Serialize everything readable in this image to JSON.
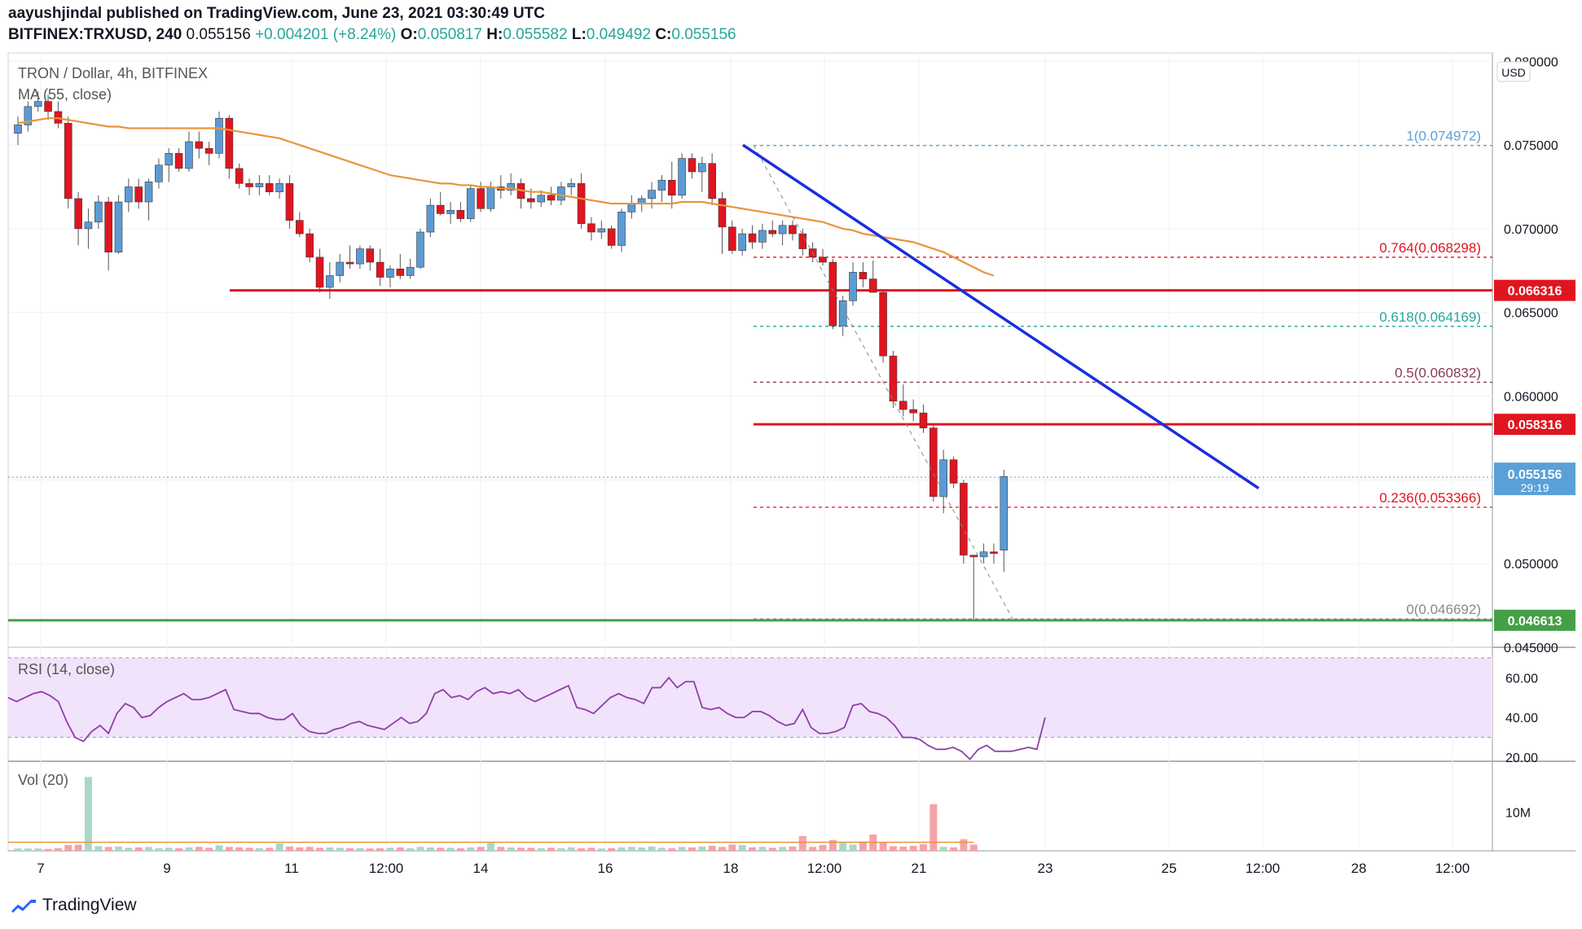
{
  "header": {
    "line1": "aayushjindal published on TradingView.com, June 23, 2021 03:30:49 UTC",
    "symbol": "BITFINEX:TRXUSD, 240",
    "last": "0.055156",
    "change": "+0.004201 (+8.24%)",
    "o_label": "O:",
    "o_val": "0.050817",
    "h_label": "H:",
    "h_val": "0.055582",
    "l_label": "L:",
    "l_val": "0.049492",
    "c_label": "C:",
    "c_val": "0.055156"
  },
  "legend": {
    "title": "TRON / Dollar, 4h, BITFINEX",
    "ma": "MA (55, close)",
    "rsi": "RSI (14, close)",
    "vol": "Vol (20)"
  },
  "brand": "TradingView",
  "colors": {
    "bull": "#5b9bd5",
    "bear": "#e0151f",
    "ma": "#e8953a",
    "trendline": "#1b2ee0",
    "support_green": "#43a047",
    "resistance_red": "#e0151f",
    "rsi_line": "#8e3fa8",
    "rsi_band": "#f1e3fb",
    "vol_bull": "#a8d8c8",
    "vol_bear": "#f4a3a8"
  },
  "chart_data": {
    "type": "candlestick",
    "title": "TRON / Dollar, 4h, BITFINEX",
    "currency": "USD",
    "price_axis": {
      "ylim": [
        0.045,
        0.0805
      ],
      "ticks": [
        "0.045000",
        "0.050000",
        "0.055000",
        "0.060000",
        "0.065000",
        "0.070000",
        "0.075000",
        "0.080000"
      ]
    },
    "time_axis": {
      "ticks": [
        "7",
        "9",
        "11",
        "12:00",
        "14",
        "16",
        "18",
        "12:00",
        "21",
        "23",
        "25",
        "12:00",
        "28",
        "12:00"
      ]
    },
    "candles": [
      [
        0.0757,
        0.0767,
        0.075,
        0.0762
      ],
      [
        0.0762,
        0.0776,
        0.0758,
        0.0773
      ],
      [
        0.0773,
        0.0782,
        0.077,
        0.0776
      ],
      [
        0.0776,
        0.078,
        0.0765,
        0.077
      ],
      [
        0.077,
        0.0776,
        0.076,
        0.0763
      ],
      [
        0.0763,
        0.0767,
        0.0712,
        0.0718
      ],
      [
        0.0718,
        0.0722,
        0.069,
        0.07
      ],
      [
        0.07,
        0.0712,
        0.0688,
        0.0704
      ],
      [
        0.0704,
        0.072,
        0.07,
        0.0716
      ],
      [
        0.0716,
        0.0719,
        0.0675,
        0.0686
      ],
      [
        0.0686,
        0.072,
        0.0685,
        0.0716
      ],
      [
        0.0716,
        0.073,
        0.071,
        0.0725
      ],
      [
        0.0725,
        0.073,
        0.0712,
        0.0716
      ],
      [
        0.0716,
        0.073,
        0.0705,
        0.0728
      ],
      [
        0.0728,
        0.0742,
        0.0724,
        0.0738
      ],
      [
        0.0738,
        0.0748,
        0.0728,
        0.0745
      ],
      [
        0.0745,
        0.0748,
        0.0734,
        0.0736
      ],
      [
        0.0736,
        0.0758,
        0.0734,
        0.0752
      ],
      [
        0.0752,
        0.0758,
        0.0742,
        0.0748
      ],
      [
        0.0748,
        0.0752,
        0.0738,
        0.0745
      ],
      [
        0.0745,
        0.077,
        0.0742,
        0.0766
      ],
      [
        0.0766,
        0.0768,
        0.073,
        0.0736
      ],
      [
        0.0736,
        0.0739,
        0.0724,
        0.0727
      ],
      [
        0.0727,
        0.073,
        0.072,
        0.0725
      ],
      [
        0.0725,
        0.0732,
        0.072,
        0.0727
      ],
      [
        0.0727,
        0.0732,
        0.072,
        0.0722
      ],
      [
        0.0722,
        0.073,
        0.0718,
        0.0727
      ],
      [
        0.0727,
        0.0732,
        0.07,
        0.0705
      ],
      [
        0.0705,
        0.071,
        0.0695,
        0.0697
      ],
      [
        0.0697,
        0.07,
        0.068,
        0.0683
      ],
      [
        0.0683,
        0.0688,
        0.0662,
        0.0665
      ],
      [
        0.0665,
        0.068,
        0.0658,
        0.0672
      ],
      [
        0.0672,
        0.0685,
        0.0668,
        0.068
      ],
      [
        0.068,
        0.069,
        0.0676,
        0.0679
      ],
      [
        0.0679,
        0.069,
        0.0676,
        0.0688
      ],
      [
        0.0688,
        0.069,
        0.0675,
        0.068
      ],
      [
        0.068,
        0.0688,
        0.0666,
        0.0671
      ],
      [
        0.0671,
        0.0678,
        0.0665,
        0.0676
      ],
      [
        0.0676,
        0.0685,
        0.067,
        0.0672
      ],
      [
        0.0672,
        0.0682,
        0.067,
        0.0677
      ],
      [
        0.0677,
        0.07,
        0.0676,
        0.0698
      ],
      [
        0.0698,
        0.0718,
        0.0695,
        0.0714
      ],
      [
        0.0714,
        0.0722,
        0.0708,
        0.0709
      ],
      [
        0.0709,
        0.0716,
        0.0703,
        0.0711
      ],
      [
        0.0711,
        0.0716,
        0.0704,
        0.0706
      ],
      [
        0.0706,
        0.0726,
        0.0704,
        0.0724
      ],
      [
        0.0724,
        0.0728,
        0.071,
        0.0712
      ],
      [
        0.0712,
        0.0728,
        0.071,
        0.0725
      ],
      [
        0.0725,
        0.0732,
        0.0718,
        0.0723
      ],
      [
        0.0723,
        0.0733,
        0.072,
        0.0727
      ],
      [
        0.0727,
        0.073,
        0.0712,
        0.0718
      ],
      [
        0.0718,
        0.0724,
        0.0712,
        0.0716
      ],
      [
        0.0716,
        0.0723,
        0.0713,
        0.072
      ],
      [
        0.072,
        0.0725,
        0.0714,
        0.0717
      ],
      [
        0.0717,
        0.0728,
        0.0714,
        0.0725
      ],
      [
        0.0725,
        0.073,
        0.072,
        0.0727
      ],
      [
        0.0727,
        0.0733,
        0.07,
        0.0703
      ],
      [
        0.0703,
        0.0707,
        0.0693,
        0.0698
      ],
      [
        0.0698,
        0.0705,
        0.0694,
        0.07
      ],
      [
        0.07,
        0.0702,
        0.0688,
        0.069
      ],
      [
        0.069,
        0.0712,
        0.0686,
        0.071
      ],
      [
        0.071,
        0.072,
        0.0706,
        0.0715
      ],
      [
        0.0715,
        0.072,
        0.071,
        0.0718
      ],
      [
        0.0718,
        0.0728,
        0.0712,
        0.0723
      ],
      [
        0.0723,
        0.0732,
        0.0716,
        0.0729
      ],
      [
        0.0729,
        0.074,
        0.0712,
        0.072
      ],
      [
        0.072,
        0.0745,
        0.0718,
        0.0742
      ],
      [
        0.0742,
        0.0745,
        0.073,
        0.0734
      ],
      [
        0.0734,
        0.0743,
        0.0722,
        0.0739
      ],
      [
        0.0739,
        0.0745,
        0.0714,
        0.0718
      ],
      [
        0.0718,
        0.0722,
        0.0685,
        0.0701
      ],
      [
        0.0701,
        0.0705,
        0.0685,
        0.0687
      ],
      [
        0.0687,
        0.07,
        0.0684,
        0.0697
      ],
      [
        0.0697,
        0.0702,
        0.0688,
        0.0692
      ],
      [
        0.0692,
        0.0703,
        0.0688,
        0.0699
      ],
      [
        0.0699,
        0.0705,
        0.0695,
        0.0697
      ],
      [
        0.0697,
        0.0705,
        0.069,
        0.0702
      ],
      [
        0.0702,
        0.0705,
        0.0693,
        0.0697
      ],
      [
        0.0697,
        0.07,
        0.0684,
        0.0688
      ],
      [
        0.0688,
        0.0692,
        0.068,
        0.0683
      ],
      [
        0.0683,
        0.0688,
        0.0678,
        0.068
      ],
      [
        0.068,
        0.0682,
        0.064,
        0.0642
      ],
      [
        0.0642,
        0.066,
        0.0636,
        0.0657
      ],
      [
        0.0657,
        0.068,
        0.0654,
        0.0674
      ],
      [
        0.0674,
        0.068,
        0.0665,
        0.067
      ],
      [
        0.067,
        0.0681,
        0.0662,
        0.0662
      ],
      [
        0.0662,
        0.0663,
        0.062,
        0.0624
      ],
      [
        0.0624,
        0.0627,
        0.0593,
        0.0597
      ],
      [
        0.0597,
        0.0607,
        0.0588,
        0.0592
      ],
      [
        0.0592,
        0.0598,
        0.0585,
        0.059
      ],
      [
        0.059,
        0.0595,
        0.0578,
        0.0581
      ],
      [
        0.0581,
        0.0583,
        0.0537,
        0.054
      ],
      [
        0.054,
        0.0568,
        0.053,
        0.0562
      ],
      [
        0.0562,
        0.0564,
        0.0545,
        0.0548
      ],
      [
        0.0548,
        0.055,
        0.05,
        0.0505
      ],
      [
        0.0505,
        0.0505,
        0.0467,
        0.0504
      ],
      [
        0.0504,
        0.0512,
        0.05,
        0.0507
      ],
      [
        0.0507,
        0.0512,
        0.05,
        0.0506
      ],
      [
        0.0508,
        0.0556,
        0.0495,
        0.0552
      ]
    ],
    "ma_values": [
      0.0763,
      0.0764,
      0.0765,
      0.0766,
      0.0766,
      0.0765,
      0.0764,
      0.0763,
      0.0762,
      0.0761,
      0.0761,
      0.076,
      0.076,
      0.076,
      0.076,
      0.076,
      0.076,
      0.076,
      0.076,
      0.076,
      0.076,
      0.0759,
      0.0758,
      0.0757,
      0.0756,
      0.0755,
      0.0754,
      0.0752,
      0.075,
      0.0748,
      0.0746,
      0.0744,
      0.0742,
      0.074,
      0.0738,
      0.0736,
      0.0734,
      0.0732,
      0.0731,
      0.073,
      0.0729,
      0.0728,
      0.0727,
      0.0727,
      0.0726,
      0.0726,
      0.0725,
      0.0725,
      0.0724,
      0.0724,
      0.0723,
      0.0722,
      0.0722,
      0.0721,
      0.072,
      0.0719,
      0.0718,
      0.0717,
      0.0716,
      0.0715,
      0.0715,
      0.0715,
      0.0715,
      0.0715,
      0.0715,
      0.0715,
      0.0716,
      0.0716,
      0.0716,
      0.0715,
      0.0714,
      0.0713,
      0.0712,
      0.0711,
      0.071,
      0.0709,
      0.0708,
      0.0707,
      0.0706,
      0.0705,
      0.0704,
      0.0702,
      0.07,
      0.0699,
      0.0697,
      0.0696,
      0.0695,
      0.0694,
      0.0693,
      0.0692,
      0.069,
      0.0688,
      0.0686,
      0.0683,
      0.068,
      0.0677,
      0.0674,
      0.0672
    ],
    "rsi": {
      "ticks": [
        "20.00",
        "40.00",
        "60.00"
      ],
      "ylim": [
        18,
        72
      ],
      "band": [
        30,
        70
      ],
      "values": [
        50,
        48,
        50,
        52,
        53,
        51,
        48,
        38,
        30,
        28,
        33,
        36,
        32,
        42,
        47,
        45,
        40,
        41,
        45,
        48,
        50,
        52,
        49,
        49,
        50,
        52,
        54,
        44,
        43,
        42,
        42,
        40,
        39,
        39,
        42,
        36,
        33,
        32,
        32,
        34,
        35,
        37,
        38,
        36,
        35,
        34,
        37,
        40,
        37,
        38,
        42,
        52,
        54,
        50,
        51,
        49,
        53,
        55,
        52,
        53,
        52,
        54,
        50,
        48,
        50,
        52,
        54,
        56,
        45,
        44,
        42,
        46,
        50,
        52,
        50,
        49,
        47,
        55,
        55,
        60,
        55,
        58,
        58,
        45,
        44,
        45,
        42,
        40,
        40,
        43,
        43,
        41,
        38,
        36,
        37,
        44,
        35,
        32,
        32,
        33,
        35,
        46,
        47,
        43,
        42,
        40,
        36,
        30,
        30,
        29,
        26,
        24,
        24,
        25,
        23,
        19,
        24,
        26,
        23,
        23,
        23,
        24,
        25,
        24,
        40
      ]
    },
    "volume": {
      "tick": "10M",
      "ylim": [
        0,
        22
      ],
      "values": [
        0.6,
        0.6,
        0.6,
        0.5,
        0.7,
        1.5,
        1.6,
        19.0,
        1.2,
        1.0,
        1.1,
        0.8,
        0.9,
        1.0,
        0.7,
        0.8,
        0.7,
        0.9,
        1.0,
        0.8,
        1.4,
        1.0,
        0.9,
        0.8,
        0.7,
        0.8,
        1.9,
        1.1,
        0.9,
        1.0,
        0.8,
        0.9,
        0.8,
        0.7,
        0.7,
        0.6,
        0.7,
        0.8,
        0.9,
        0.7,
        1.0,
        0.9,
        0.8,
        0.8,
        0.7,
        0.9,
        1.0,
        2.0,
        1.0,
        0.9,
        0.8,
        0.8,
        0.7,
        0.8,
        0.7,
        0.9,
        0.7,
        0.8,
        0.6,
        0.7,
        0.9,
        1.0,
        0.9,
        1.1,
        0.8,
        0.7,
        1.0,
        0.9,
        1.1,
        1.3,
        1.0,
        1.6,
        1.5,
        0.9,
        1.0,
        0.8,
        1.0,
        1.1,
        3.8,
        1.0,
        1.5,
        2.8,
        2.0,
        1.6,
        2.4,
        4.2,
        2.1,
        1.2,
        1.1,
        1.3,
        1.7,
        12.0,
        1.0,
        0.9,
        3.0,
        1.6
      ],
      "ma": 2.2
    },
    "fib_levels": [
      {
        "label": "1(0.074972)",
        "value": 0.074972,
        "color": "#5aa0d8"
      },
      {
        "label": "0.764(0.068298)",
        "value": 0.068298,
        "color": "#e0151f"
      },
      {
        "label": "0.618(0.064169)",
        "value": 0.064169,
        "color": "#26a69a"
      },
      {
        "label": "0.5(0.060832)",
        "value": 0.060832,
        "color": "#8a3a5a"
      },
      {
        "label": "0.236(0.053366)",
        "value": 0.053366,
        "color": "#e0151f"
      },
      {
        "label": "0(0.046692)",
        "value": 0.046692,
        "color": "#888888"
      }
    ],
    "horizontal_lines": [
      {
        "label": "0.066316",
        "value": 0.066316,
        "color": "#e0151f"
      },
      {
        "label": "0.058316",
        "value": 0.058316,
        "color": "#e0151f"
      },
      {
        "label": "0.046613",
        "value": 0.046613,
        "color": "#43a047"
      }
    ],
    "last_price": {
      "label": "0.055156",
      "countdown": "29:19",
      "value": 0.055156
    },
    "trendline": {
      "from": 0.075,
      "to": 0.0545
    }
  }
}
